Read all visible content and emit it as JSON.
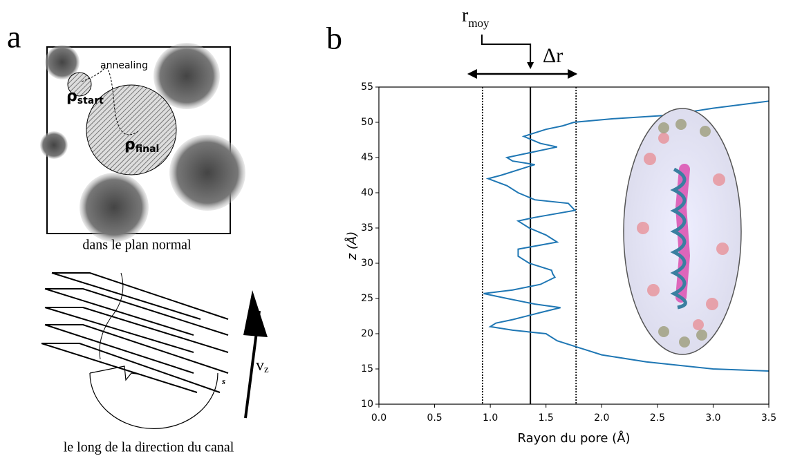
{
  "panel_a": {
    "label": "a",
    "top": {
      "caption": "dans le plan  normal",
      "annealing": "annealing",
      "rho_start": {
        "symbol": "ρ",
        "sub": "start"
      },
      "rho_final": {
        "symbol": "ρ",
        "sub": "final"
      }
    },
    "bottom": {
      "caption": "le long de la direction du canal",
      "spacing": "s",
      "velocity": {
        "symbol": "v",
        "sub": "z"
      }
    }
  },
  "panel_b": {
    "label": "b"
  },
  "chart_data": {
    "type": "line",
    "xlabel": "Rayon du pore (Å)",
    "ylabel": "z (Å)",
    "xlim": [
      0,
      3.5
    ],
    "ylim": [
      10,
      55
    ],
    "xticks": [
      {
        "value": 0,
        "label": "0.0"
      },
      {
        "value": 0.5,
        "label": "0.5"
      },
      {
        "value": 1,
        "label": "1.0"
      },
      {
        "value": 1.5,
        "label": "1.5"
      },
      {
        "value": 2,
        "label": "2.0"
      },
      {
        "value": 2.5,
        "label": "2.5"
      },
      {
        "value": 3,
        "label": "3.0"
      },
      {
        "value": 3.5,
        "label": "3.5"
      }
    ],
    "yticks": [
      10,
      15,
      20,
      25,
      30,
      35,
      40,
      45,
      50,
      55
    ],
    "x": [
      3.5,
      3.0,
      2.4,
      2.0,
      1.8,
      1.6,
      1.5,
      1.2,
      1.0,
      1.05,
      1.2,
      1.45,
      1.63,
      1.4,
      1.15,
      0.94,
      1.2,
      1.45,
      1.58,
      1.56,
      1.55,
      1.35,
      1.25,
      1.25,
      1.6,
      1.5,
      1.35,
      1.25,
      1.4,
      1.76,
      1.7,
      1.4,
      1.25,
      1.15,
      0.98,
      1.1,
      1.3,
      1.4,
      1.2,
      1.15,
      1.3,
      1.6,
      1.45,
      1.3,
      1.5,
      1.65,
      1.75,
      2.1,
      2.6,
      3.0,
      3.5
    ],
    "series": [
      {
        "color": "#1f77b4",
        "values": [
          14.7,
          15,
          16,
          17,
          18,
          19,
          20,
          20.5,
          21,
          21.5,
          22,
          23,
          23.7,
          24.2,
          25,
          25.7,
          26.2,
          27,
          28,
          28.5,
          29,
          30,
          31,
          32,
          33,
          34,
          35,
          36,
          36.5,
          37.5,
          38.5,
          39,
          40,
          41,
          42,
          42.5,
          43.5,
          44,
          44.5,
          45,
          45.5,
          46.5,
          47,
          48,
          49,
          49.5,
          50,
          50.5,
          51,
          52,
          53
        ]
      }
    ],
    "vlines": [
      {
        "value": 1.36,
        "style": "solid"
      },
      {
        "value": 0.93,
        "style": "dotted"
      },
      {
        "value": 1.77,
        "style": "dotted"
      }
    ],
    "annotations": {
      "r_moy": {
        "text": "r",
        "sub": "moy"
      },
      "delta_r": "Δr"
    }
  }
}
